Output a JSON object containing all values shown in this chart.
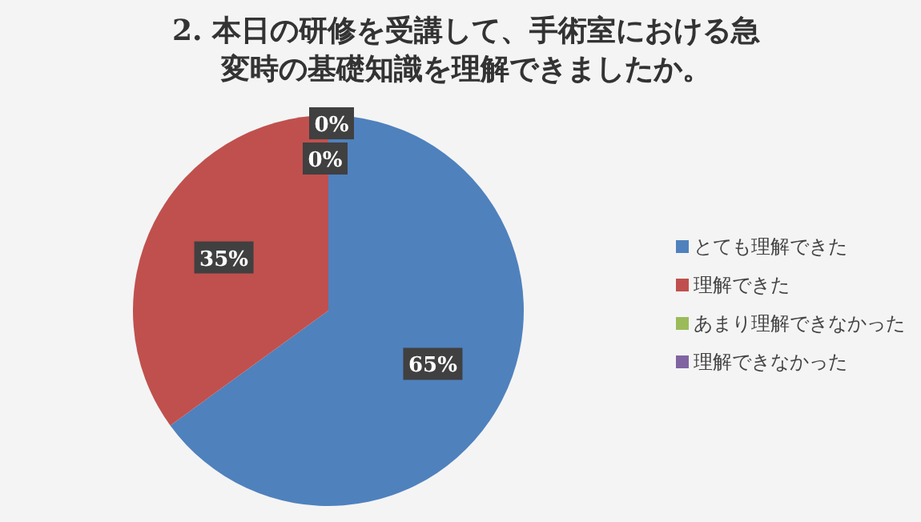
{
  "chart_data": {
    "type": "pie",
    "title": "2.  本日の研修を受講して、手術室における急変時の基礎知識を理解できましたか。",
    "categories": [
      "とても理解できた",
      "理解できた",
      "あまり理解できなかった",
      "理解できなかった"
    ],
    "values": [
      65,
      35,
      0,
      0
    ],
    "colors": [
      "#4f81bd",
      "#c0504d",
      "#9bbb59",
      "#8064a2"
    ],
    "value_labels": [
      "65%",
      "35%",
      "0%",
      "0%"
    ],
    "legend": "right"
  }
}
